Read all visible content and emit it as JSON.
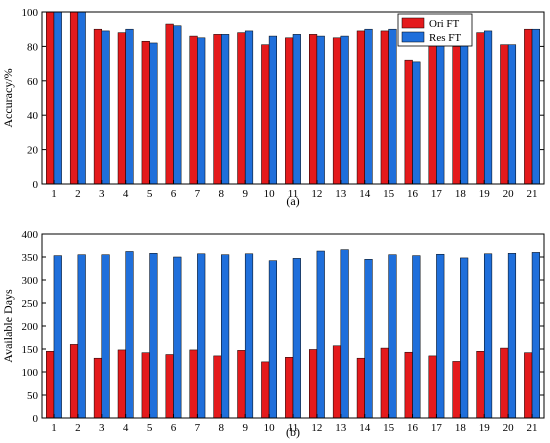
{
  "chart_data": [
    {
      "type": "bar",
      "panel_label": "(a)",
      "ylabel": "Accuracy/%",
      "xlabel": "",
      "ylim": [
        0,
        100
      ],
      "yticks": [
        0,
        20,
        40,
        60,
        80,
        100
      ],
      "categories": [
        "1",
        "2",
        "3",
        "4",
        "5",
        "6",
        "7",
        "8",
        "9",
        "10",
        "11",
        "12",
        "13",
        "14",
        "15",
        "16",
        "17",
        "18",
        "19",
        "20",
        "21"
      ],
      "legend_position": "top-right",
      "series": [
        {
          "name": "Ori FT",
          "color": "#e41a1c",
          "values": [
            100,
            100,
            90,
            88,
            83,
            93,
            86,
            87,
            88,
            81,
            85,
            87,
            85,
            89,
            89,
            72,
            85,
            80,
            88,
            81,
            90
          ]
        },
        {
          "name": "Res FT",
          "color": "#1f6fdb",
          "values": [
            100,
            100,
            89,
            90,
            82,
            92,
            85,
            87,
            89,
            86,
            87,
            86,
            86,
            90,
            90,
            71,
            84,
            82,
            89,
            81,
            90
          ]
        }
      ]
    },
    {
      "type": "bar",
      "panel_label": "(b)",
      "ylabel": "Available Days",
      "xlabel": "",
      "ylim": [
        0,
        400
      ],
      "yticks": [
        0,
        50,
        100,
        150,
        200,
        250,
        300,
        350,
        400
      ],
      "categories": [
        "1",
        "2",
        "3",
        "4",
        "5",
        "6",
        "7",
        "8",
        "9",
        "10",
        "11",
        "12",
        "13",
        "14",
        "15",
        "16",
        "17",
        "18",
        "19",
        "20",
        "21"
      ],
      "series": [
        {
          "name": "Ori FT",
          "color": "#e41a1c",
          "values": [
            145,
            160,
            130,
            148,
            142,
            138,
            148,
            135,
            147,
            122,
            132,
            149,
            157,
            130,
            152,
            143,
            135,
            123,
            145,
            152,
            142
          ]
        },
        {
          "name": "Res FT",
          "color": "#1f6fdb",
          "values": [
            353,
            355,
            355,
            362,
            358,
            350,
            357,
            355,
            357,
            342,
            347,
            363,
            366,
            345,
            355,
            353,
            356,
            348,
            357,
            358,
            360
          ]
        }
      ]
    }
  ]
}
